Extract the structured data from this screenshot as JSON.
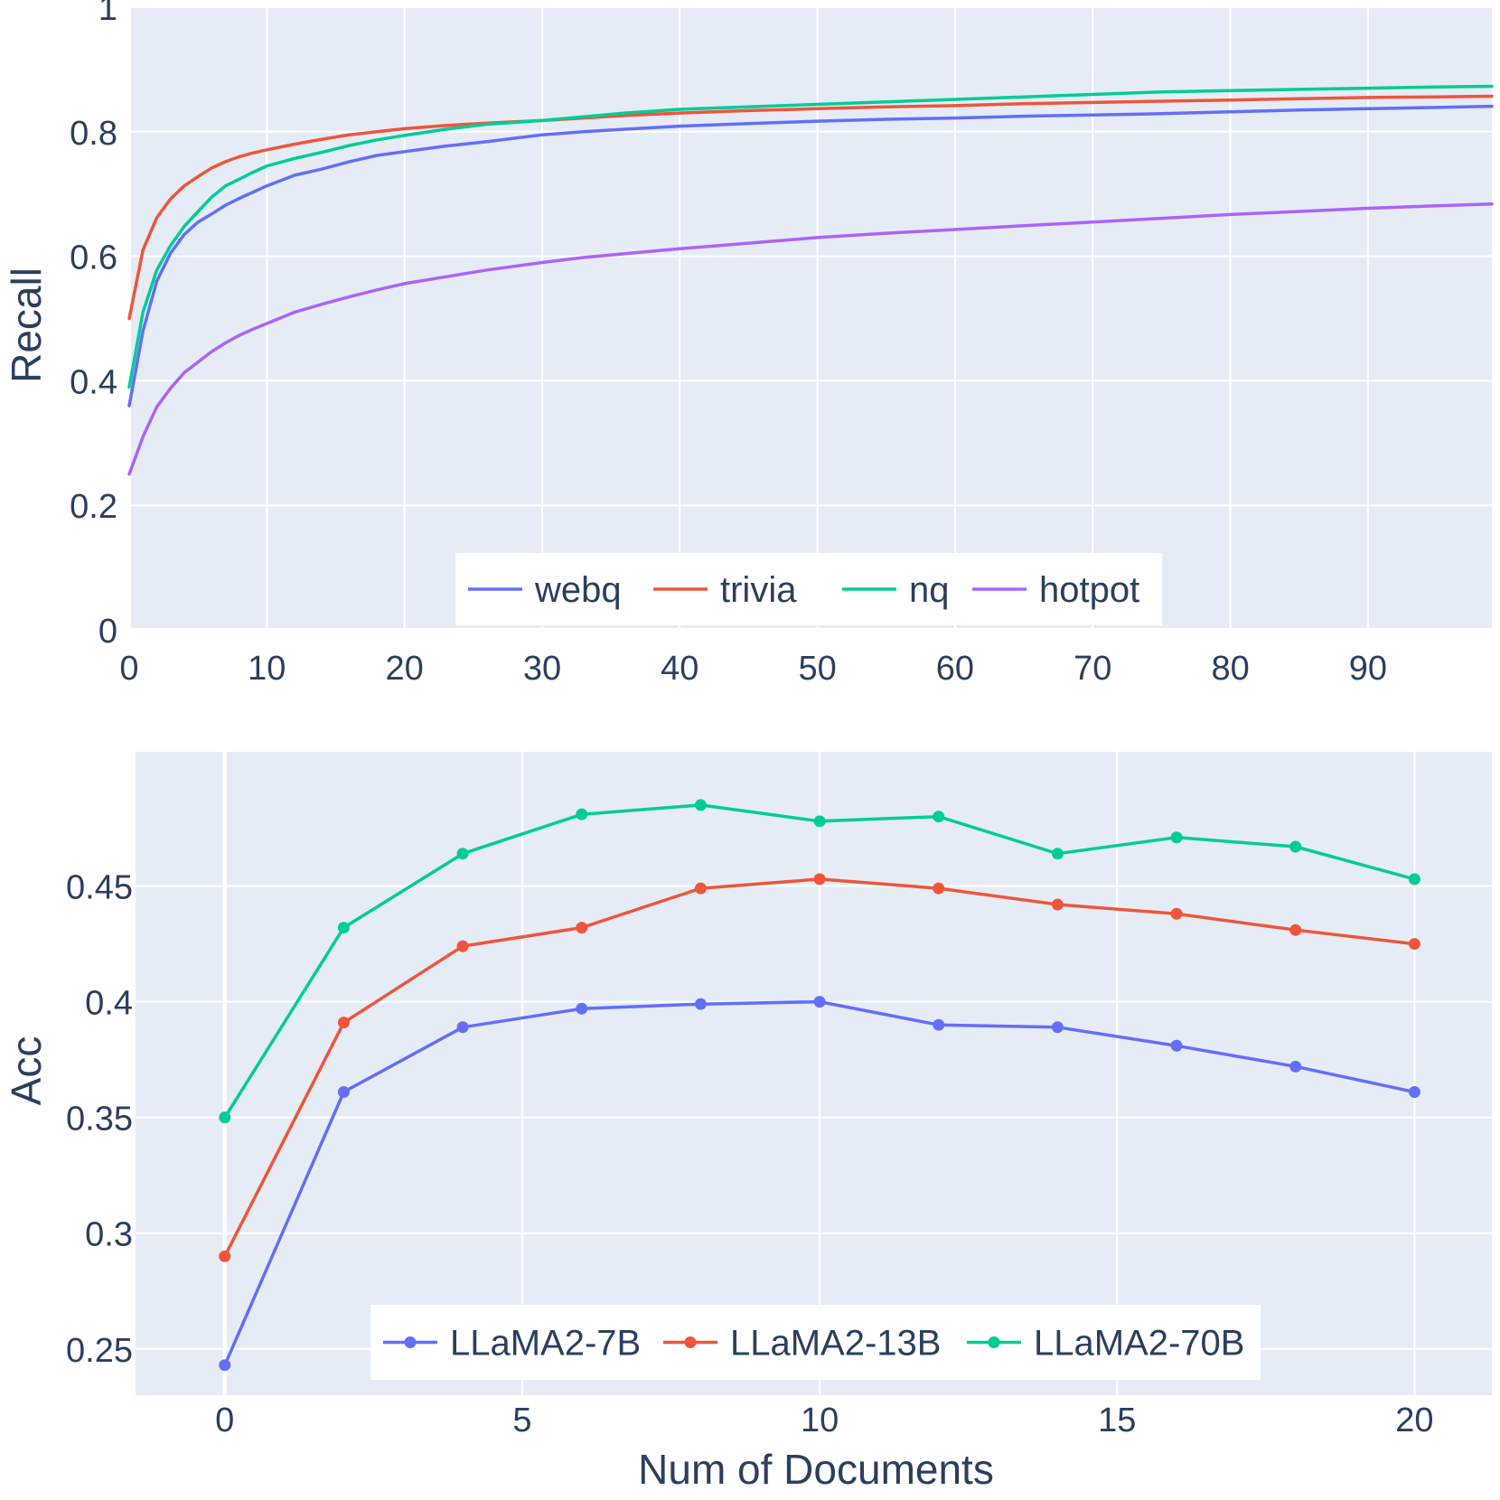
{
  "chart_data": [
    {
      "type": "line",
      "xlabel": "",
      "ylabel": "Recall",
      "xlim": [
        0,
        99
      ],
      "ylim": [
        0,
        1
      ],
      "xticks": [
        0,
        10,
        20,
        30,
        40,
        50,
        60,
        70,
        80,
        90
      ],
      "xtick_labels": [
        "0",
        "10",
        "20",
        "30",
        "40",
        "50",
        "60",
        "70",
        "80",
        "90"
      ],
      "yticks": [
        0,
        0.2,
        0.4,
        0.6,
        0.8,
        1
      ],
      "ytick_labels": [
        "0",
        "0.2",
        "0.4",
        "0.6",
        "0.8",
        "1"
      ],
      "grid": true,
      "legend_position": "bottom-center",
      "markers": false,
      "x": [
        0,
        1,
        2,
        3,
        4,
        5,
        6,
        7,
        8,
        9,
        10,
        12,
        14,
        16,
        18,
        20,
        23,
        26,
        30,
        33,
        36,
        40,
        45,
        50,
        55,
        60,
        65,
        70,
        75,
        80,
        85,
        90,
        95,
        99
      ],
      "series": [
        {
          "name": "webq",
          "color": "#636efa",
          "values": [
            0.36,
            0.48,
            0.56,
            0.605,
            0.635,
            0.655,
            0.668,
            0.682,
            0.693,
            0.703,
            0.713,
            0.73,
            0.74,
            0.752,
            0.762,
            0.768,
            0.777,
            0.784,
            0.795,
            0.8,
            0.804,
            0.809,
            0.813,
            0.817,
            0.82,
            0.822,
            0.825,
            0.827,
            0.829,
            0.832,
            0.835,
            0.837,
            0.839,
            0.841
          ]
        },
        {
          "name": "trivia",
          "color": "#ef553b",
          "values": [
            0.5,
            0.61,
            0.662,
            0.692,
            0.713,
            0.728,
            0.742,
            0.752,
            0.76,
            0.766,
            0.771,
            0.78,
            0.788,
            0.795,
            0.8,
            0.805,
            0.81,
            0.814,
            0.818,
            0.822,
            0.826,
            0.83,
            0.834,
            0.837,
            0.84,
            0.842,
            0.845,
            0.847,
            0.849,
            0.851,
            0.853,
            0.855,
            0.856,
            0.857
          ]
        },
        {
          "name": "nq",
          "color": "#00cc96",
          "values": [
            0.39,
            0.51,
            0.578,
            0.617,
            0.648,
            0.672,
            0.695,
            0.713,
            0.724,
            0.735,
            0.745,
            0.757,
            0.767,
            0.778,
            0.787,
            0.794,
            0.804,
            0.812,
            0.818,
            0.824,
            0.83,
            0.836,
            0.84,
            0.844,
            0.848,
            0.852,
            0.856,
            0.86,
            0.864,
            0.866,
            0.868,
            0.87,
            0.872,
            0.873
          ]
        },
        {
          "name": "hotpot",
          "color": "#ab63fa",
          "values": [
            0.25,
            0.31,
            0.358,
            0.388,
            0.413,
            0.43,
            0.447,
            0.461,
            0.473,
            0.483,
            0.492,
            0.51,
            0.523,
            0.535,
            0.546,
            0.556,
            0.567,
            0.578,
            0.59,
            0.598,
            0.604,
            0.612,
            0.621,
            0.63,
            0.637,
            0.643,
            0.649,
            0.655,
            0.661,
            0.667,
            0.672,
            0.677,
            0.681,
            0.684
          ]
        }
      ]
    },
    {
      "type": "line",
      "xlabel": "Num of Documents",
      "ylabel": "Acc",
      "xlim": [
        -1.5,
        21.3
      ],
      "ylim": [
        0.23,
        0.508
      ],
      "xticks": [
        0,
        5,
        10,
        15,
        20
      ],
      "xtick_labels": [
        "0",
        "5",
        "10",
        "15",
        "20"
      ],
      "yticks": [
        0.25,
        0.3,
        0.35,
        0.4,
        0.45
      ],
      "ytick_labels": [
        "0.25",
        "0.3",
        "0.35",
        "0.4",
        "0.45"
      ],
      "grid": true,
      "legend_position": "bottom-center",
      "markers": true,
      "x": [
        0,
        2,
        4,
        6,
        8,
        10,
        12,
        14,
        16,
        18,
        20
      ],
      "series": [
        {
          "name": "LLaMA2-7B",
          "color": "#636efa",
          "values": [
            0.243,
            0.361,
            0.389,
            0.397,
            0.399,
            0.4,
            0.39,
            0.389,
            0.381,
            0.372,
            0.361
          ]
        },
        {
          "name": "LLaMA2-13B",
          "color": "#ef553b",
          "values": [
            0.29,
            0.391,
            0.424,
            0.432,
            0.449,
            0.453,
            0.449,
            0.442,
            0.438,
            0.431,
            0.425
          ]
        },
        {
          "name": "LLaMA2-70B",
          "color": "#00cc96",
          "values": [
            0.35,
            0.432,
            0.464,
            0.481,
            0.485,
            0.478,
            0.48,
            0.464,
            0.471,
            0.467,
            0.453
          ]
        }
      ]
    }
  ]
}
